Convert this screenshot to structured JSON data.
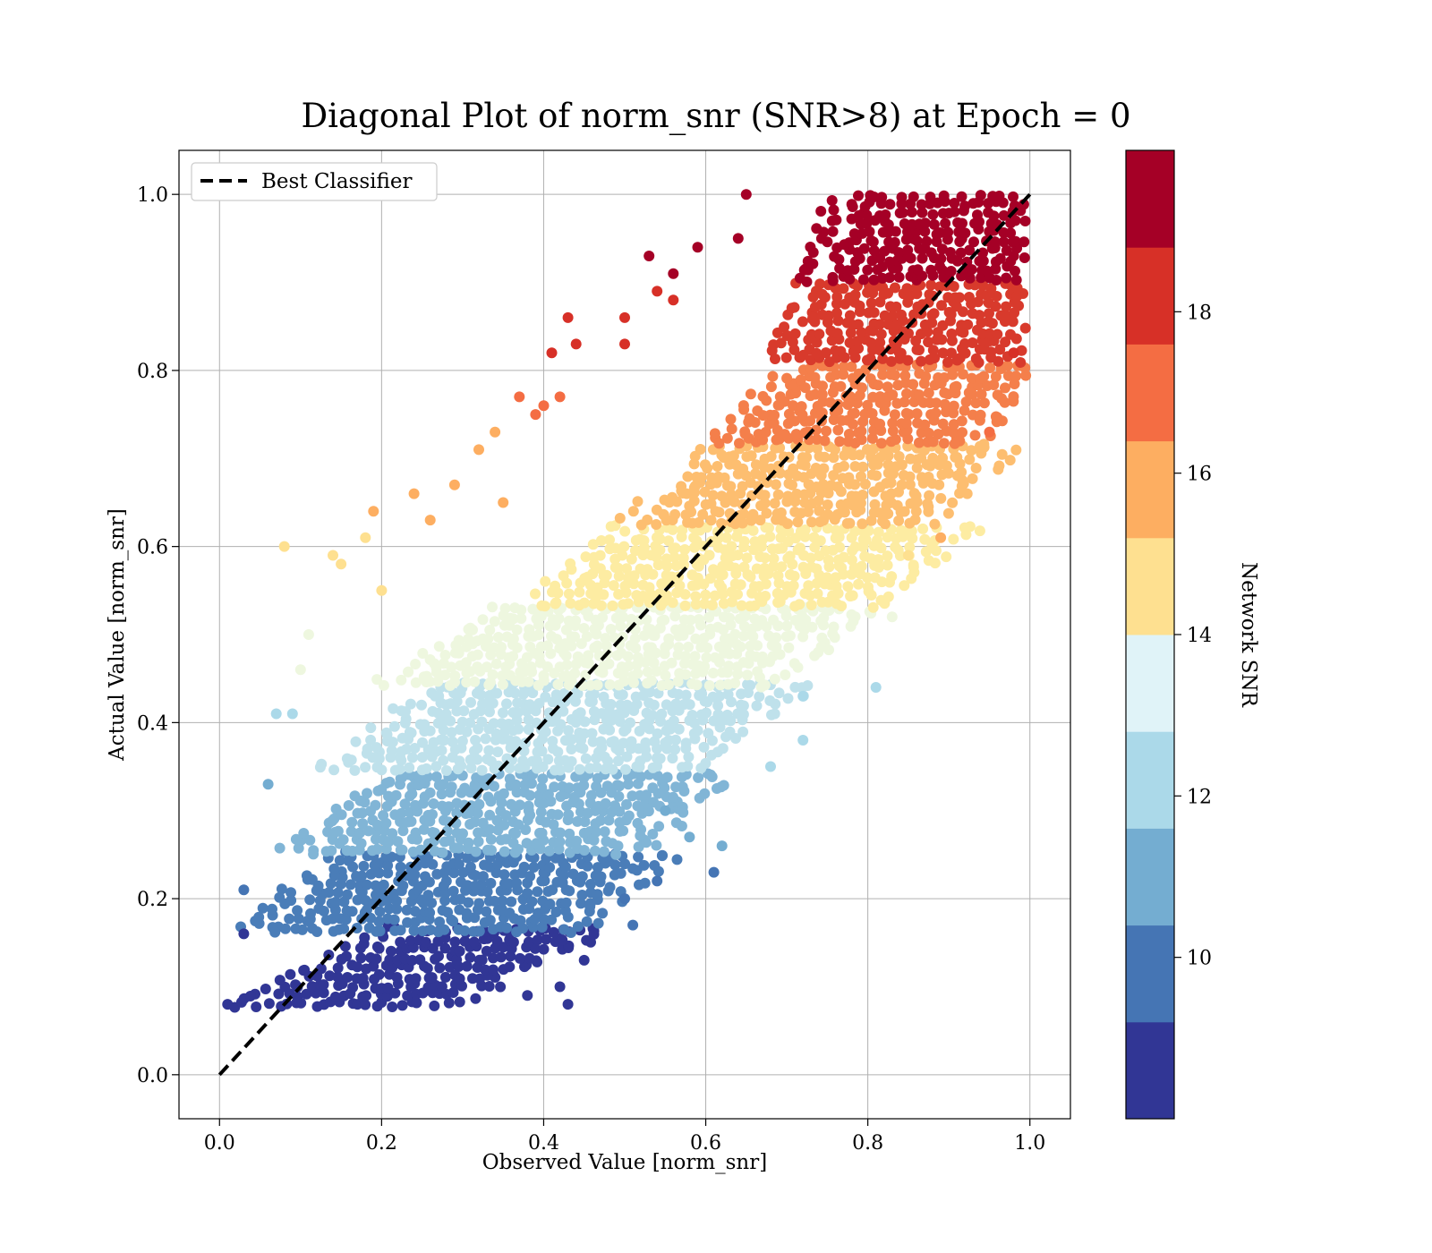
{
  "chart_data": {
    "type": "scatter",
    "title": "Diagonal Plot of norm_snr (SNR>8) at Epoch = 0",
    "xlabel": "Observed Value [norm_snr]",
    "ylabel": "Actual Value [norm_snr]",
    "xlim": [
      -0.05,
      1.05
    ],
    "ylim": [
      -0.05,
      1.05
    ],
    "xticks": [
      "0.0",
      "0.2",
      "0.4",
      "0.6",
      "0.8",
      "1.0"
    ],
    "yticks": [
      "0.0",
      "0.2",
      "0.4",
      "0.6",
      "0.8",
      "1.0"
    ],
    "grid": true,
    "legend": {
      "placement": "upper-left",
      "entries": [
        {
          "label": "Best Classifier",
          "style": "dashed",
          "color": "#000000"
        }
      ]
    },
    "reference_line": {
      "x": [
        0.0,
        1.0
      ],
      "y": [
        0.0,
        1.0
      ]
    },
    "colorbar": {
      "label": "Network SNR",
      "range": [
        8,
        20
      ],
      "tick_values": [
        10,
        12,
        14,
        16,
        18
      ],
      "tick_labels": [
        "10",
        "12",
        "14",
        "16",
        "18"
      ],
      "colors": [
        "#313695",
        "#4575b4",
        "#74add1",
        "#abd9e9",
        "#e0f3f8",
        "#fee090",
        "#fdae61",
        "#f46d43",
        "#d73027",
        "#a50026"
      ]
    },
    "bands": [
      {
        "snr_range": [
          8.0,
          9.2
        ],
        "y_range": [
          0.08,
          0.165
        ],
        "x_center_range": [
          0.13,
          0.33
        ],
        "x_spread": [
          -0.08,
          0.12
        ],
        "color": "#313695"
      },
      {
        "snr_range": [
          9.2,
          10.4
        ],
        "y_range": [
          0.165,
          0.255
        ],
        "x_center_range": [
          0.23,
          0.35
        ],
        "x_spread": [
          -0.16,
          0.18
        ],
        "color": "#4a7db8"
      },
      {
        "snr_range": [
          10.4,
          11.6
        ],
        "y_range": [
          0.255,
          0.348
        ],
        "x_center_range": [
          0.28,
          0.41
        ],
        "x_spread": [
          -0.16,
          0.2
        ],
        "color": "#81b5d6"
      },
      {
        "snr_range": [
          11.6,
          12.8
        ],
        "y_range": [
          0.348,
          0.445
        ],
        "x_center_range": [
          0.35,
          0.49
        ],
        "x_spread": [
          -0.18,
          0.2
        ],
        "color": "#bfe1eb"
      },
      {
        "snr_range": [
          12.8,
          14.0
        ],
        "y_range": [
          0.445,
          0.535
        ],
        "x_center_range": [
          0.44,
          0.58
        ],
        "x_spread": [
          -0.2,
          0.2
        ],
        "color": "#eef7df"
      },
      {
        "snr_range": [
          14.0,
          15.2
        ],
        "y_range": [
          0.535,
          0.628
        ],
        "x_center_range": [
          0.6,
          0.72
        ],
        "x_spread": [
          -0.18,
          0.18
        ],
        "color": "#fdeca2"
      },
      {
        "snr_range": [
          15.2,
          16.4
        ],
        "y_range": [
          0.628,
          0.72
        ],
        "x_center_range": [
          0.67,
          0.78
        ],
        "x_spread": [
          -0.13,
          0.17
        ],
        "color": "#fdbe70"
      },
      {
        "snr_range": [
          16.4,
          17.6
        ],
        "y_range": [
          0.72,
          0.812
        ],
        "x_center_range": [
          0.76,
          0.87
        ],
        "x_spread": [
          -0.12,
          0.14
        ],
        "color": "#f47f4b"
      },
      {
        "snr_range": [
          17.6,
          18.8
        ],
        "y_range": [
          0.812,
          0.905
        ],
        "x_center_range": [
          0.84,
          0.88
        ],
        "x_spread": [
          -0.12,
          0.13
        ],
        "color": "#d83a2c"
      },
      {
        "snr_range": [
          18.8,
          20.0
        ],
        "y_range": [
          0.905,
          1.0
        ],
        "x_center_range": [
          0.86,
          0.9
        ],
        "x_spread": [
          -0.1,
          0.13
        ],
        "color": "#a50026"
      }
    ],
    "outlier_points": [
      {
        "x": 0.01,
        "y": 0.08,
        "c": "#313695"
      },
      {
        "x": 0.03,
        "y": 0.16,
        "c": "#313695"
      },
      {
        "x": 0.43,
        "y": 0.08,
        "c": "#313695"
      },
      {
        "x": 0.42,
        "y": 0.1,
        "c": "#313695"
      },
      {
        "x": 0.45,
        "y": 0.13,
        "c": "#313695"
      },
      {
        "x": 0.38,
        "y": 0.09,
        "c": "#313695"
      },
      {
        "x": 0.51,
        "y": 0.17,
        "c": "#4575b4"
      },
      {
        "x": 0.54,
        "y": 0.22,
        "c": "#4575b4"
      },
      {
        "x": 0.61,
        "y": 0.23,
        "c": "#4575b4"
      },
      {
        "x": 0.5,
        "y": 0.2,
        "c": "#4575b4"
      },
      {
        "x": 0.03,
        "y": 0.21,
        "c": "#4575b4"
      },
      {
        "x": 0.62,
        "y": 0.26,
        "c": "#74add1"
      },
      {
        "x": 0.58,
        "y": 0.27,
        "c": "#74add1"
      },
      {
        "x": 0.55,
        "y": 0.3,
        "c": "#74add1"
      },
      {
        "x": 0.06,
        "y": 0.33,
        "c": "#74add1"
      },
      {
        "x": 0.07,
        "y": 0.41,
        "c": "#abd9e9"
      },
      {
        "x": 0.09,
        "y": 0.41,
        "c": "#abd9e9"
      },
      {
        "x": 0.68,
        "y": 0.35,
        "c": "#abd9e9"
      },
      {
        "x": 0.72,
        "y": 0.38,
        "c": "#abd9e9"
      },
      {
        "x": 0.81,
        "y": 0.44,
        "c": "#abd9e9"
      },
      {
        "x": 0.72,
        "y": 0.43,
        "c": "#abd9e9"
      },
      {
        "x": 0.83,
        "y": 0.52,
        "c": "#eef7df"
      },
      {
        "x": 0.1,
        "y": 0.46,
        "c": "#eef7df"
      },
      {
        "x": 0.11,
        "y": 0.5,
        "c": "#eef7df"
      },
      {
        "x": 0.08,
        "y": 0.6,
        "c": "#fee090"
      },
      {
        "x": 0.14,
        "y": 0.59,
        "c": "#fee090"
      },
      {
        "x": 0.15,
        "y": 0.58,
        "c": "#fee090"
      },
      {
        "x": 0.18,
        "y": 0.61,
        "c": "#fee090"
      },
      {
        "x": 0.2,
        "y": 0.55,
        "c": "#fee090"
      },
      {
        "x": 0.85,
        "y": 0.59,
        "c": "#fee090"
      },
      {
        "x": 0.19,
        "y": 0.64,
        "c": "#fdae61"
      },
      {
        "x": 0.24,
        "y": 0.66,
        "c": "#fdae61"
      },
      {
        "x": 0.26,
        "y": 0.63,
        "c": "#fdae61"
      },
      {
        "x": 0.29,
        "y": 0.67,
        "c": "#fdae61"
      },
      {
        "x": 0.32,
        "y": 0.71,
        "c": "#fdae61"
      },
      {
        "x": 0.34,
        "y": 0.73,
        "c": "#fdae61"
      },
      {
        "x": 0.35,
        "y": 0.65,
        "c": "#fdae61"
      },
      {
        "x": 0.89,
        "y": 0.61,
        "c": "#fdae61"
      },
      {
        "x": 0.37,
        "y": 0.77,
        "c": "#f46d43"
      },
      {
        "x": 0.39,
        "y": 0.75,
        "c": "#f46d43"
      },
      {
        "x": 0.4,
        "y": 0.76,
        "c": "#f46d43"
      },
      {
        "x": 0.42,
        "y": 0.77,
        "c": "#f46d43"
      },
      {
        "x": 0.95,
        "y": 0.73,
        "c": "#f46d43"
      },
      {
        "x": 0.41,
        "y": 0.82,
        "c": "#d73027"
      },
      {
        "x": 0.43,
        "y": 0.86,
        "c": "#d73027"
      },
      {
        "x": 0.44,
        "y": 0.83,
        "c": "#d73027"
      },
      {
        "x": 0.5,
        "y": 0.86,
        "c": "#d73027"
      },
      {
        "x": 0.5,
        "y": 0.83,
        "c": "#d73027"
      },
      {
        "x": 0.54,
        "y": 0.89,
        "c": "#d73027"
      },
      {
        "x": 0.56,
        "y": 0.88,
        "c": "#d73027"
      },
      {
        "x": 0.98,
        "y": 0.82,
        "c": "#d73027"
      },
      {
        "x": 0.53,
        "y": 0.93,
        "c": "#a50026"
      },
      {
        "x": 0.59,
        "y": 0.94,
        "c": "#a50026"
      },
      {
        "x": 0.65,
        "y": 1.0,
        "c": "#a50026"
      },
      {
        "x": 0.64,
        "y": 0.95,
        "c": "#a50026"
      },
      {
        "x": 0.56,
        "y": 0.91,
        "c": "#a50026"
      },
      {
        "x": 0.98,
        "y": 0.93,
        "c": "#a50026"
      }
    ]
  }
}
